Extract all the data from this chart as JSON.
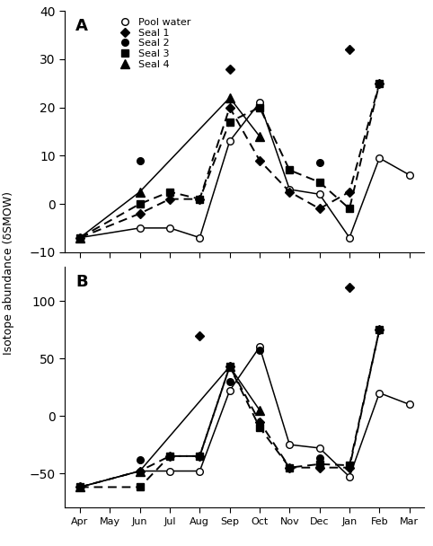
{
  "months": [
    "Apr",
    "May",
    "Jun",
    "Jul",
    "Aug",
    "Sep",
    "Oct",
    "Nov",
    "Dec",
    "Jan",
    "Feb",
    "Mar"
  ],
  "panelA": {
    "pool_water": {
      "x": [
        0,
        2,
        3,
        4,
        5,
        6,
        7,
        8,
        9,
        10,
        11
      ],
      "y": [
        -7,
        -5,
        -5,
        -7,
        13,
        21,
        3,
        2,
        -7,
        9.5,
        6
      ]
    },
    "seal1_line": {
      "x": [
        0,
        2,
        3,
        4,
        5,
        6,
        7,
        8,
        9,
        10
      ],
      "y": [
        -7,
        -2,
        1,
        1,
        20,
        9,
        2.5,
        -1,
        2.5,
        25
      ]
    },
    "seal1_extra": {
      "x": [
        5
      ],
      "y": [
        28
      ]
    },
    "seal1_jan": {
      "x": [
        9
      ],
      "y": [
        32
      ]
    },
    "seal2_pts": {
      "x": [
        2,
        6,
        8
      ],
      "y": [
        9,
        20,
        8.5
      ]
    },
    "seal3_line": {
      "x": [
        0,
        2,
        3,
        4,
        5,
        6,
        7,
        8,
        9,
        10
      ],
      "y": [
        -7,
        0,
        2.5,
        1,
        17,
        20,
        7,
        4.5,
        -1,
        25
      ]
    },
    "seal4_line": {
      "x": [
        0,
        2,
        5,
        6
      ],
      "y": [
        -7,
        2.5,
        22,
        14
      ]
    },
    "ylim": [
      -10,
      40
    ],
    "yticks": [
      -10,
      0,
      10,
      20,
      30,
      40
    ],
    "label": "A"
  },
  "panelB": {
    "pool_water": {
      "x": [
        0,
        2,
        3,
        4,
        5,
        6,
        7,
        8,
        9,
        10,
        11
      ],
      "y": [
        -62,
        -48,
        -48,
        -48,
        22,
        60,
        -25,
        -28,
        -53,
        20,
        10
      ]
    },
    "seal1_line": {
      "x": [
        0,
        2,
        3,
        4,
        5,
        6,
        7,
        8,
        9,
        10
      ],
      "y": [
        -62,
        -48,
        -35,
        -35,
        43,
        -5,
        -45,
        -45,
        -45,
        75
      ]
    },
    "seal1_sep_extra": {
      "x": [
        4
      ],
      "y": [
        70
      ]
    },
    "seal1_jan_extra": {
      "x": [
        9
      ],
      "y": [
        112
      ]
    },
    "seal2_pts": {
      "x": [
        2,
        5,
        6,
        8
      ],
      "y": [
        -38,
        30,
        57,
        -37
      ]
    },
    "seal3_line": {
      "x": [
        0,
        2,
        3,
        4,
        5,
        6,
        7,
        8,
        9,
        10
      ],
      "y": [
        -62,
        -62,
        -35,
        -35,
        43,
        -10,
        -45,
        -42,
        -43,
        75
      ]
    },
    "seal4_line": {
      "x": [
        0,
        2,
        5,
        6
      ],
      "y": [
        -62,
        -48,
        43,
        5
      ]
    },
    "ylim": [
      -80,
      130
    ],
    "yticks": [
      -50,
      0,
      50,
      100
    ],
    "label": "B"
  },
  "line_color": "#000000",
  "ylabel": "Isotope abundance (δSMOW)",
  "background_color": "#ffffff"
}
